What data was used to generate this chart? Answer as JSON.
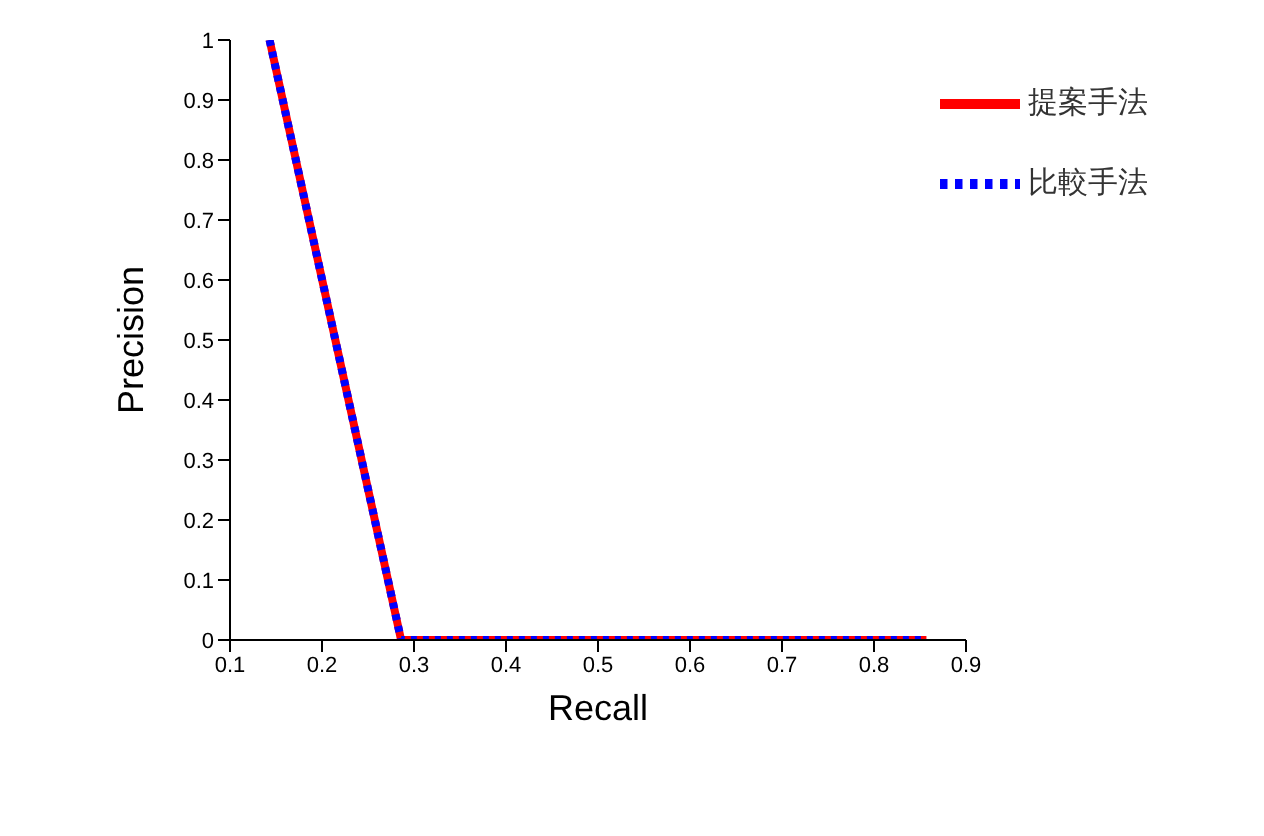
{
  "chart_data": {
    "type": "line",
    "xlabel": "Recall",
    "ylabel": "Precision",
    "xlim": [
      0.1,
      0.9
    ],
    "xticks": [
      0.1,
      0.2,
      0.3,
      0.4,
      0.5,
      0.6,
      0.7,
      0.8,
      0.9
    ],
    "ylim": [
      0,
      1
    ],
    "yticks": [
      0,
      0.1,
      0.2,
      0.3,
      0.4,
      0.5,
      0.6,
      0.7,
      0.8,
      0.9,
      1
    ],
    "grid": false,
    "legend": "top right",
    "marker": "none",
    "x": [
      0.143,
      0.286,
      0.857
    ],
    "series": [
      {
        "name": "提案手法",
        "color": "#ff0000",
        "line_style": "solid",
        "values": [
          1,
          0,
          0
        ]
      },
      {
        "name": "比較手法",
        "color": "#0000ff",
        "line_style": "dotted",
        "values": [
          1,
          0,
          0
        ]
      }
    ]
  }
}
